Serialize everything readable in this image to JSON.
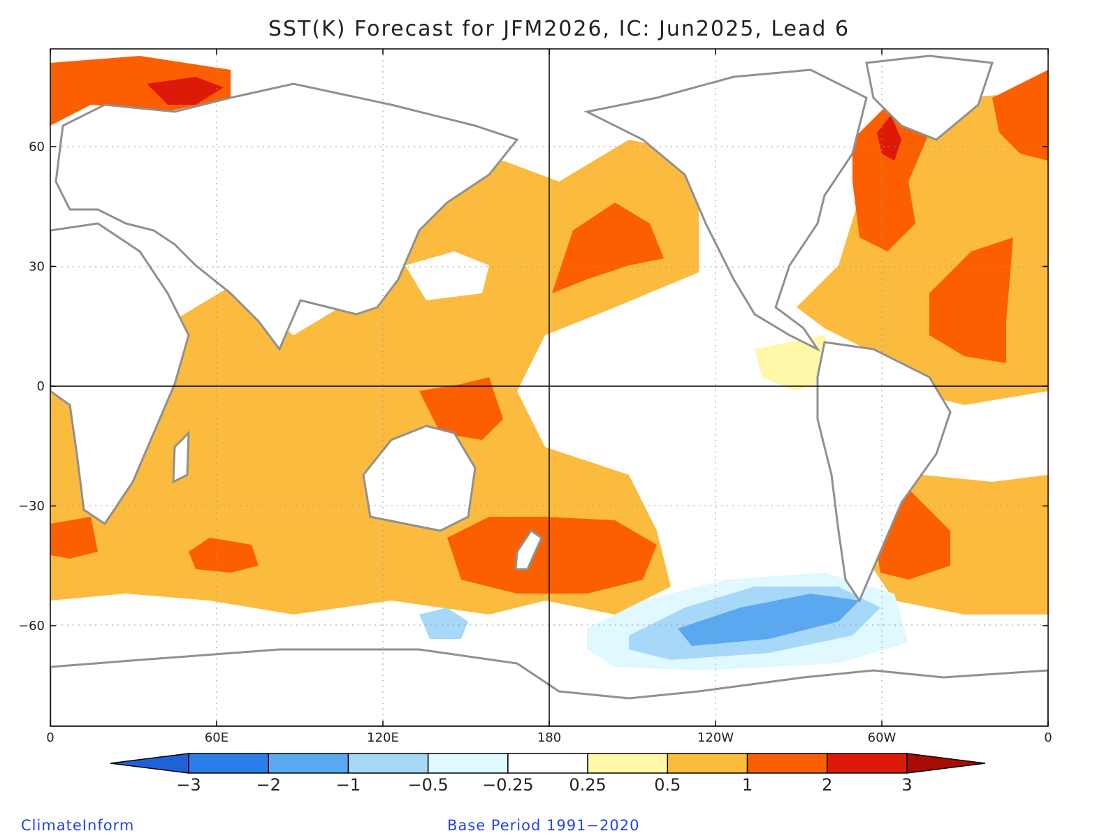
{
  "title": "SST(K) Forecast for JFM2026, IC: Jun2025, Lead 6",
  "map": {
    "variable": "SST anomaly",
    "units": "K",
    "lon_range": [
      0,
      360
    ],
    "lat_range": [
      -85,
      85
    ],
    "lat_ticks": [
      {
        "value": 60,
        "label": "60"
      },
      {
        "value": 30,
        "label": "30"
      },
      {
        "value": 0,
        "label": "0"
      },
      {
        "value": -30,
        "label": "−30"
      },
      {
        "value": -60,
        "label": "−60"
      }
    ],
    "lon_ticks": [
      {
        "value": 0,
        "label": "0"
      },
      {
        "value": 60,
        "label": "60E"
      },
      {
        "value": 120,
        "label": "120E"
      },
      {
        "value": 180,
        "label": "180"
      },
      {
        "value": 240,
        "label": "120W"
      },
      {
        "value": 300,
        "label": "60W"
      },
      {
        "value": 360,
        "label": "0"
      }
    ]
  },
  "colorbar": {
    "levels": [
      "−3",
      "−2",
      "−1",
      "−0.5",
      "−0.25",
      "0.25",
      "0.5",
      "1",
      "2",
      "3"
    ],
    "colors": [
      "#1f62d8",
      "#2b7fe8",
      "#5aa8f0",
      "#a8d8f8",
      "#e0f8ff",
      "#ffffff",
      "#fff8a8",
      "#fbbb3e",
      "#fb5f00",
      "#dd1a08",
      "#a80c04"
    ]
  },
  "footer": {
    "source": "ClimateInform",
    "base_period": "Base Period 1991−2020"
  }
}
